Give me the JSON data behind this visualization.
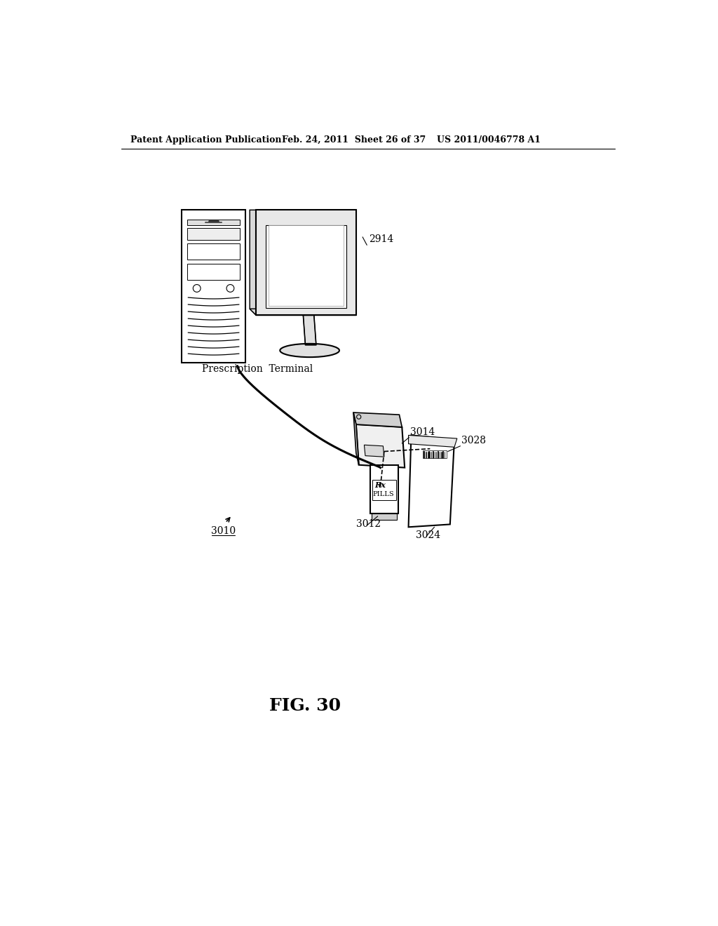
{
  "bg_color": "#ffffff",
  "header_left": "Patent Application Publication",
  "header_mid": "Feb. 24, 2011  Sheet 26 of 37",
  "header_right": "US 2011/0046778 A1",
  "fig_label": "FIG. 30",
  "label_2914": "2914",
  "label_3014": "3014",
  "label_3028": "3028",
  "label_3012": "3012",
  "label_3024": "3024",
  "label_3010": "3010",
  "label_prescription": "Prescription  Terminal",
  "line_color": "#000000",
  "line_width": 1.5
}
